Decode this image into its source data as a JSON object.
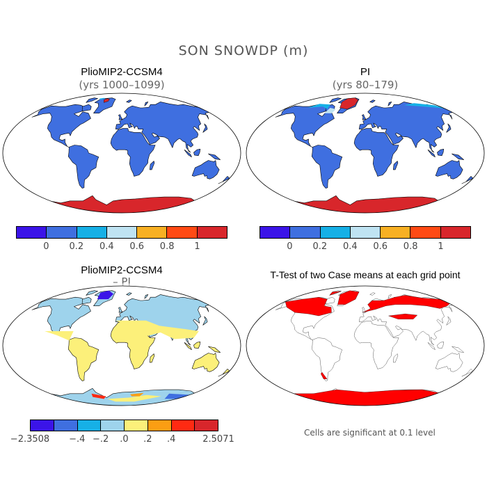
{
  "figure": {
    "title": "SON SNOWDP (m)"
  },
  "panels": {
    "top_left": {
      "title": "PlioMIP2-CCSM4",
      "subtitle": "(yrs 1000–1099)"
    },
    "top_right": {
      "title": "PI",
      "subtitle": "(yrs 80–179)"
    },
    "bottom_left": {
      "title": "PlioMIP2-CCSM4",
      "subtitle": "– PI"
    },
    "bottom_right": {
      "title": "T-Test of two Case means at each grid point",
      "note": "Cells are significant at 0.1 level"
    }
  },
  "colorbar_top": {
    "colors": [
      "#3b14e8",
      "#3f6fe0",
      "#16b0e6",
      "#bfe3f2",
      "#f7b023",
      "#ff4a14",
      "#d8262b"
    ],
    "ticks": [
      "0",
      "0.2",
      "0.4",
      "0.6",
      "0.8",
      "1"
    ]
  },
  "colorbar_bottom": {
    "colors": [
      "#3b14e8",
      "#3f6fe0",
      "#16b0e6",
      "#9ed3ec",
      "#fcf07a",
      "#fb9e13",
      "#ff2a12",
      "#d8262b"
    ],
    "ticks": [
      "−2.3508",
      "−.4",
      "−.2",
      ".0",
      ".2",
      ".4",
      "2.5071"
    ]
  },
  "map_colors": {
    "land_default": "#3f6fe0",
    "antarctica_snow": "#d8262b",
    "diff_nh": "#9ed3ec",
    "diff_sh": "#fcf07a",
    "significant": "#ff0000",
    "coast": "#000000"
  }
}
